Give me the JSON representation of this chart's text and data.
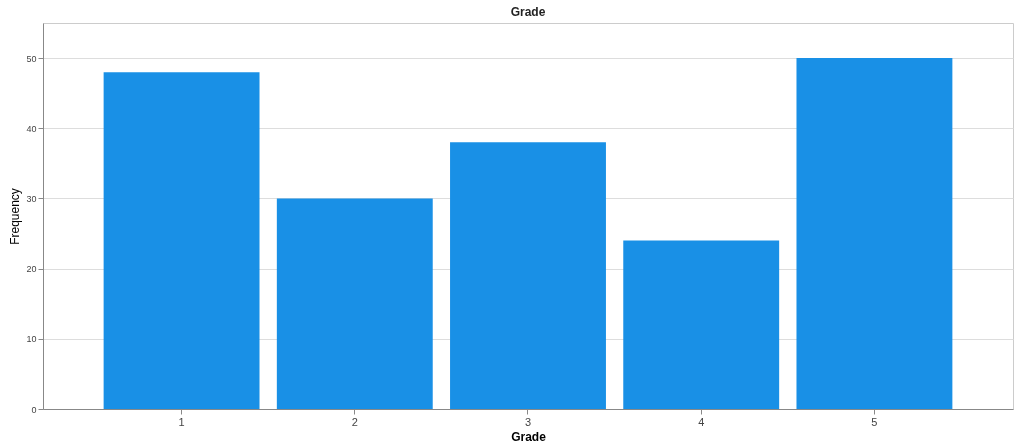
{
  "chart_data": {
    "type": "bar",
    "title": "Grade",
    "xlabel": "Grade",
    "ylabel": "Frequency",
    "categories": [
      "1",
      "2",
      "3",
      "4",
      "5"
    ],
    "values": [
      48,
      30,
      38,
      24,
      50
    ],
    "color": "#1990e6",
    "ylim": [
      0,
      55
    ],
    "yticks": [
      0,
      10,
      20,
      30,
      40,
      50
    ],
    "grid": "y"
  }
}
